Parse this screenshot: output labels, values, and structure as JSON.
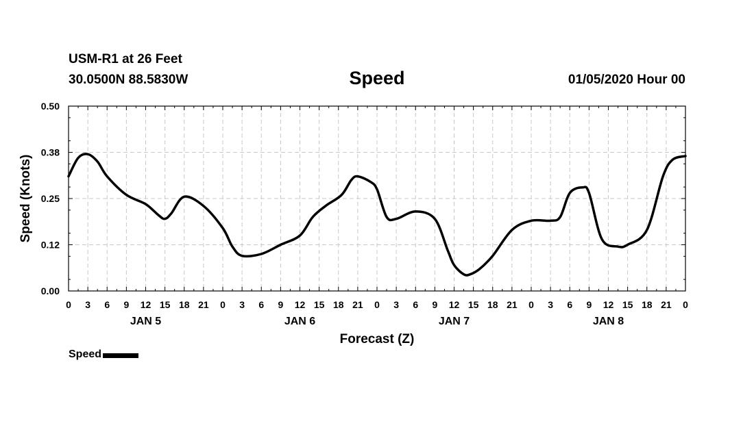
{
  "header": {
    "station": "USM-R1 at 26 Feet",
    "coords": "30.0500N 88.5830W",
    "datetime": "01/05/2020 Hour 00"
  },
  "chart_data": {
    "type": "line",
    "title": "Speed",
    "xlabel": "Forecast (Z)",
    "ylabel": "Speed (Knots)",
    "ylim": [
      0,
      0.5
    ],
    "xlim": [
      0,
      96
    ],
    "x_units": "hours since 01/05/2020 00Z",
    "y_ticks": [
      "0.00",
      "0.12",
      "0.25",
      "0.38",
      "0.50"
    ],
    "x_tick_labels": [
      "0",
      "3",
      "6",
      "9",
      "12",
      "15",
      "18",
      "21",
      "0",
      "3",
      "6",
      "9",
      "12",
      "15",
      "18",
      "21",
      "0",
      "3",
      "6",
      "9",
      "12",
      "15",
      "18",
      "21",
      "0",
      "3",
      "6",
      "9",
      "12",
      "15",
      "18",
      "21",
      "0"
    ],
    "day_labels": [
      {
        "label": "JAN 5",
        "x": 12
      },
      {
        "label": "JAN 6",
        "x": 36
      },
      {
        "label": "JAN 7",
        "x": 60
      },
      {
        "label": "JAN 8",
        "x": 84
      }
    ],
    "grid": true,
    "legend": "bottom-left",
    "series": [
      {
        "name": "Speed",
        "color": "#000000",
        "x": [
          0,
          1.5,
          3,
          4.5,
          6,
          9,
          12,
          14,
          15,
          16,
          18,
          21,
          24,
          25.5,
          27,
          30,
          33,
          36,
          38,
          40,
          42.5,
          44,
          45,
          47,
          48,
          49.5,
          51,
          54,
          57,
          59,
          60,
          61.5,
          62.5,
          64,
          66,
          69,
          72,
          75,
          76.5,
          78,
          80,
          81,
          83,
          85.5,
          87,
          90,
          92.5,
          94,
          96
        ],
        "y": [
          0.31,
          0.36,
          0.37,
          0.35,
          0.31,
          0.26,
          0.235,
          0.205,
          0.195,
          0.21,
          0.255,
          0.23,
          0.17,
          0.12,
          0.095,
          0.1,
          0.125,
          0.15,
          0.2,
          0.23,
          0.26,
          0.3,
          0.31,
          0.295,
          0.275,
          0.2,
          0.195,
          0.215,
          0.195,
          0.11,
          0.07,
          0.045,
          0.045,
          0.06,
          0.095,
          0.165,
          0.19,
          0.19,
          0.2,
          0.265,
          0.28,
          0.265,
          0.14,
          0.12,
          0.125,
          0.165,
          0.31,
          0.355,
          0.365
        ]
      }
    ]
  },
  "legend": {
    "label": "Speed"
  }
}
